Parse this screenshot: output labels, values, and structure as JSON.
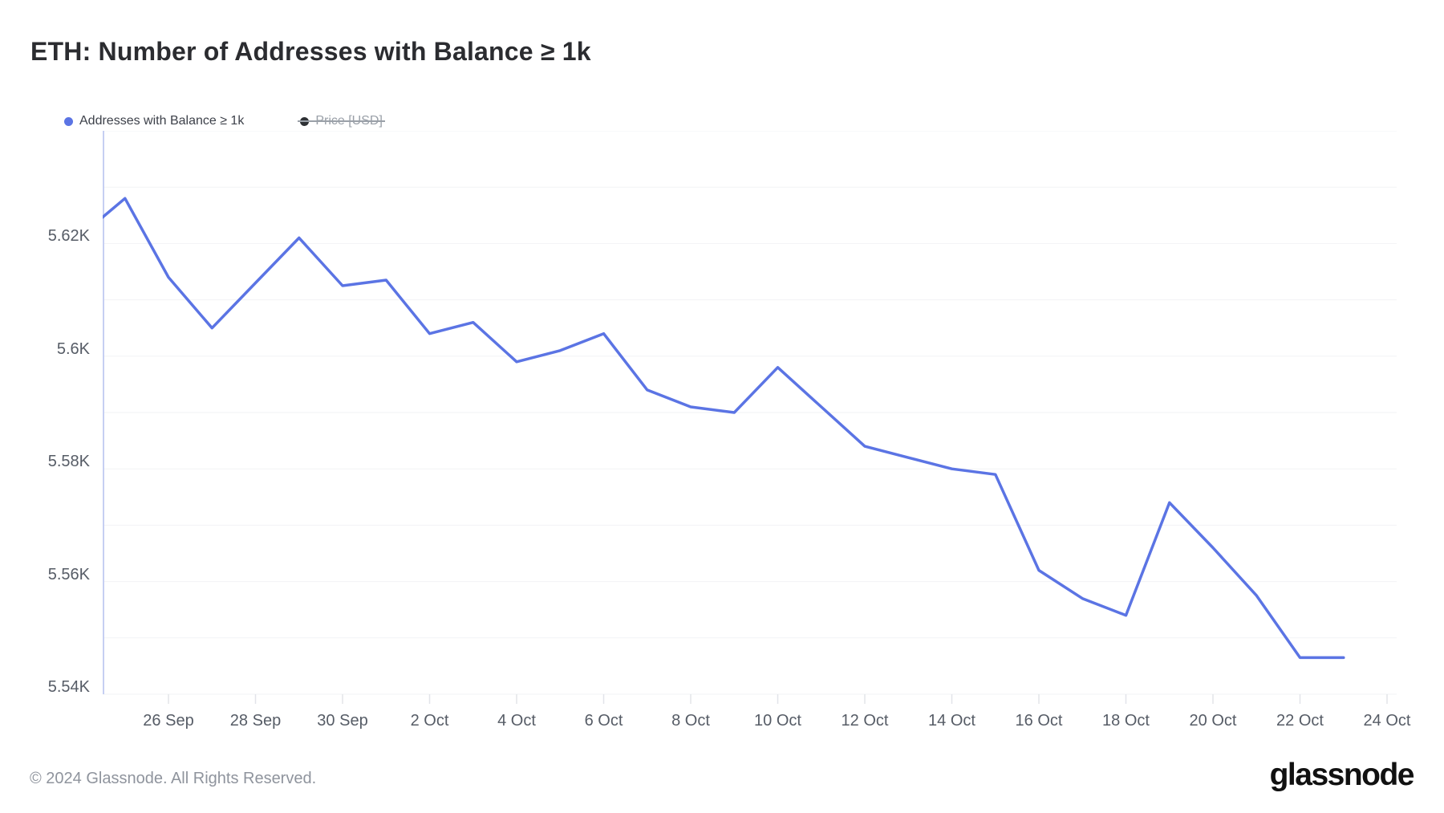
{
  "header": {
    "title": "ETH: Number of Addresses with Balance ≥ 1k"
  },
  "legend": [
    {
      "label": "Addresses with Balance ≥ 1k",
      "dot_color": "#5B74E4",
      "active": true
    },
    {
      "label": "Price [USD]",
      "dot_color": "#2E3135",
      "active": false
    }
  ],
  "chart_data": {
    "type": "line",
    "title": "ETH: Number of Addresses with Balance ≥ 1k",
    "xlabel": "",
    "ylabel": "Addresses with Balance ≥ 1k",
    "y_unit": "K",
    "ylim": [
      5.54,
      5.64
    ],
    "grid": true,
    "legend_position": "top-left",
    "categories": [
      "24 Sep",
      "25 Sep",
      "26 Sep",
      "27 Sep",
      "28 Sep",
      "29 Sep",
      "30 Sep",
      "1 Oct",
      "2 Oct",
      "3 Oct",
      "4 Oct",
      "5 Oct",
      "6 Oct",
      "7 Oct",
      "8 Oct",
      "9 Oct",
      "10 Oct",
      "11 Oct",
      "12 Oct",
      "13 Oct",
      "14 Oct",
      "15 Oct",
      "16 Oct",
      "17 Oct",
      "18 Oct",
      "19 Oct",
      "20 Oct",
      "21 Oct",
      "22 Oct",
      "23 Oct"
    ],
    "series": [
      {
        "name": "Addresses with Balance ≥ 1k",
        "color": "#5B74E4",
        "values": [
          5.6215,
          5.628,
          5.614,
          5.605,
          5.613,
          5.621,
          5.6125,
          5.6135,
          5.604,
          5.606,
          5.599,
          5.601,
          5.604,
          5.594,
          5.591,
          5.59,
          5.598,
          5.591,
          5.584,
          5.582,
          5.58,
          5.579,
          5.562,
          5.557,
          5.554,
          5.574,
          5.566,
          5.5575,
          5.5465,
          5.5465
        ]
      }
    ],
    "y_tick_labels": [
      "5.62K",
      "5.6K",
      "5.58K",
      "5.56K",
      "5.54K"
    ],
    "y_tick_values": [
      5.62,
      5.6,
      5.58,
      5.56,
      5.54
    ],
    "x_tick_labels": [
      "26 Sep",
      "28 Sep",
      "30 Sep",
      "2 Oct",
      "4 Oct",
      "6 Oct",
      "8 Oct",
      "10 Oct",
      "12 Oct",
      "14 Oct",
      "16 Oct",
      "18 Oct",
      "20 Oct",
      "22 Oct",
      "24 Oct"
    ]
  },
  "colors": {
    "line": "#5B74E4",
    "axis_line": "#C6CFF2",
    "gridline": "#F2F3F5",
    "tick_mark": "#E2E4E9",
    "axis_text": "#565C66",
    "title_text": "#2B2C30",
    "footer_text": "#8F949D"
  },
  "footer": {
    "copyright": "© 2024 Glassnode. All Rights Reserved.",
    "brand": "glassnode"
  }
}
